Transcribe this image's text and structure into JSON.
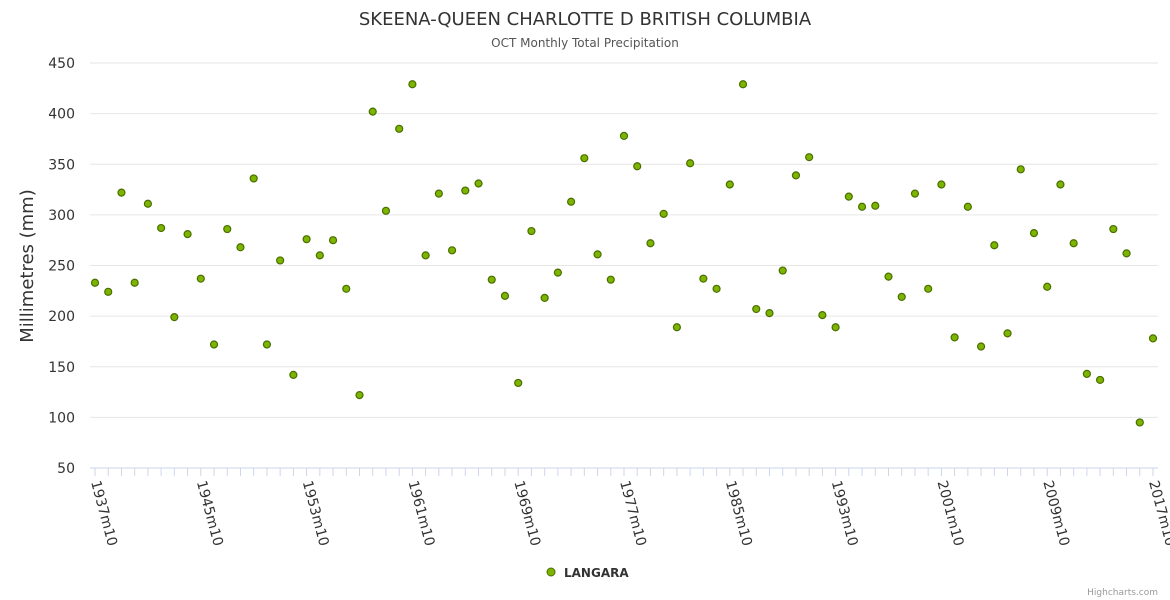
{
  "chart_data": {
    "type": "scatter",
    "title": "SKEENA-QUEEN CHARLOTTE D BRITISH COLUMBIA",
    "subtitle": "OCT Monthly Total Precipitation",
    "ylabel": "Millimetres (mm)",
    "xlabel": "",
    "ylim": [
      50,
      450
    ],
    "yticks": [
      50,
      100,
      150,
      200,
      250,
      300,
      350,
      400,
      450
    ],
    "x_start_year": 1937,
    "x_end_year": 2017,
    "xtick_labels": [
      "1937m10",
      "1945m10",
      "1953m10",
      "1961m10",
      "1969m10",
      "1977m10",
      "1985m10",
      "1993m10",
      "2001m10",
      "2009m10",
      "2017m10"
    ],
    "grid": true,
    "legend_position": "bottom-center",
    "series": [
      {
        "name": "LANGARA",
        "color": "#7cb500",
        "border": "#4a6e00",
        "values": [
          233,
          224,
          322,
          233,
          311,
          287,
          199,
          281,
          237,
          172,
          286,
          268,
          336,
          172,
          255,
          142,
          276,
          260,
          275,
          227,
          122,
          402,
          304,
          385,
          429,
          260,
          321,
          265,
          324,
          331,
          236,
          220,
          134,
          284,
          218,
          243,
          313,
          356,
          261,
          236,
          378,
          348,
          272,
          301,
          189,
          351,
          237,
          227,
          330,
          429,
          207,
          203,
          245,
          339,
          357,
          201,
          189,
          318,
          308,
          309,
          239,
          219,
          321,
          227,
          330,
          179,
          308,
          170,
          270,
          183,
          345,
          282,
          229,
          330,
          272,
          143,
          137,
          286,
          262,
          95,
          178
        ]
      }
    ]
  },
  "credits": "Highcharts.com"
}
